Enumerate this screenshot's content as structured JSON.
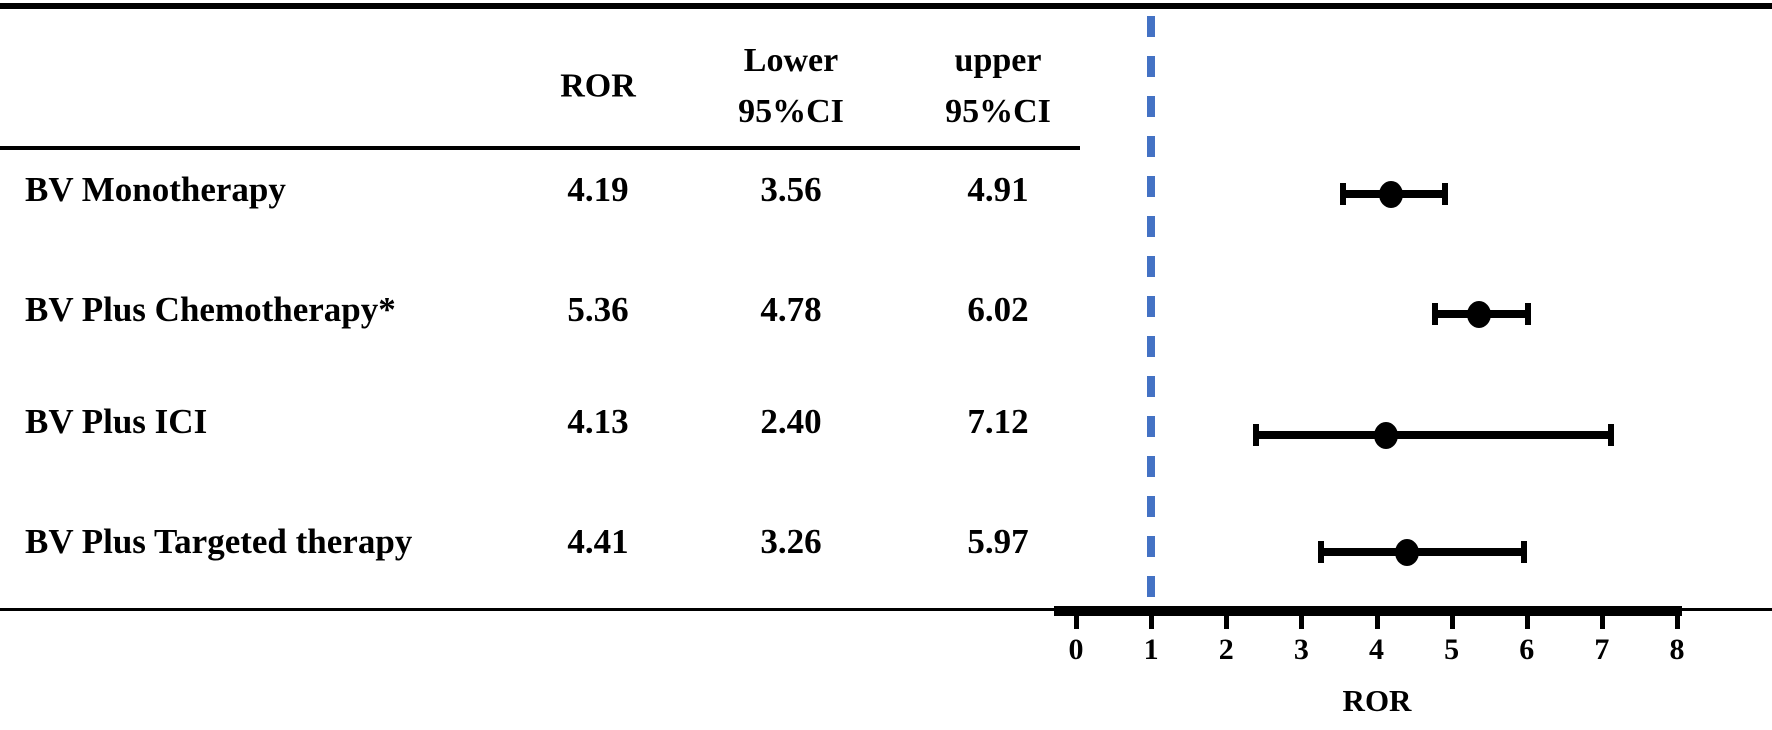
{
  "table": {
    "headers": {
      "ror": "ROR",
      "lower_line1": "Lower",
      "lower_line2": "95%CI",
      "upper_line1": "upper",
      "upper_line2": "95%CI"
    }
  },
  "chart_data": {
    "type": "forest",
    "title": "",
    "xlabel": "ROR",
    "xlim": [
      0,
      8
    ],
    "xticks": [
      0,
      1,
      2,
      3,
      4,
      5,
      6,
      7,
      8
    ],
    "reference_line": 1,
    "grid": "off",
    "colors": {
      "reference_line": "#4472C4",
      "marker": "#000000",
      "line": "#000000",
      "text": "#000000"
    },
    "rows": [
      {
        "label": "BV Monotherapy",
        "ror": "4.19",
        "lower": "3.56",
        "upper": "4.91"
      },
      {
        "label": "BV Plus Chemotherapy*",
        "ror": "5.36",
        "lower": "4.78",
        "upper": "6.02"
      },
      {
        "label": "BV Plus ICI",
        "ror": "4.13",
        "lower": "2.40",
        "upper": "7.12"
      },
      {
        "label": "BV Plus Targeted therapy",
        "ror": "4.41",
        "lower": "3.26",
        "upper": "5.97"
      }
    ]
  }
}
